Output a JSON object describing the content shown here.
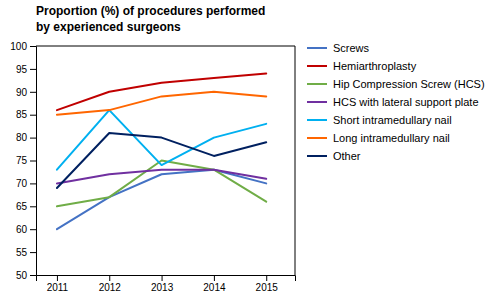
{
  "chart_data": {
    "type": "line",
    "title": "Proportion (%) of procedures performed",
    "subtitle": "by experienced surgeons",
    "x": [
      2011,
      2012,
      2013,
      2014,
      2015
    ],
    "series": [
      {
        "name": "Screws",
        "color": "#4472c4",
        "values": [
          60,
          67,
          72,
          73,
          70
        ]
      },
      {
        "name": "Hemiarthroplasty",
        "color": "#c00000",
        "values": [
          86,
          90,
          92,
          93,
          94
        ]
      },
      {
        "name": "Hip Compression Screw (HCS)",
        "color": "#70ad47",
        "values": [
          65,
          67,
          75,
          73,
          66
        ]
      },
      {
        "name": "HCS with lateral support plate",
        "color": "#7030a0",
        "values": [
          70,
          72,
          73,
          73,
          71
        ]
      },
      {
        "name": "Short intramedullary nail",
        "color": "#00b0f0",
        "values": [
          73,
          86,
          74,
          80,
          83
        ]
      },
      {
        "name": "Long intramedullary nail",
        "color": "#ff6600",
        "values": [
          85,
          86,
          89,
          90,
          89
        ]
      },
      {
        "name": "Other",
        "color": "#002060",
        "values": [
          69,
          81,
          80,
          76,
          79
        ]
      }
    ],
    "xlim": [
      2010.6,
      2015.55
    ],
    "xticks": [
      2011,
      2012,
      2013,
      2014,
      2015
    ],
    "ylim": [
      50,
      100
    ],
    "yticks": [
      50,
      55,
      60,
      65,
      70,
      75,
      80,
      85,
      90,
      95,
      100
    ],
    "grid": false,
    "legend": "right"
  }
}
